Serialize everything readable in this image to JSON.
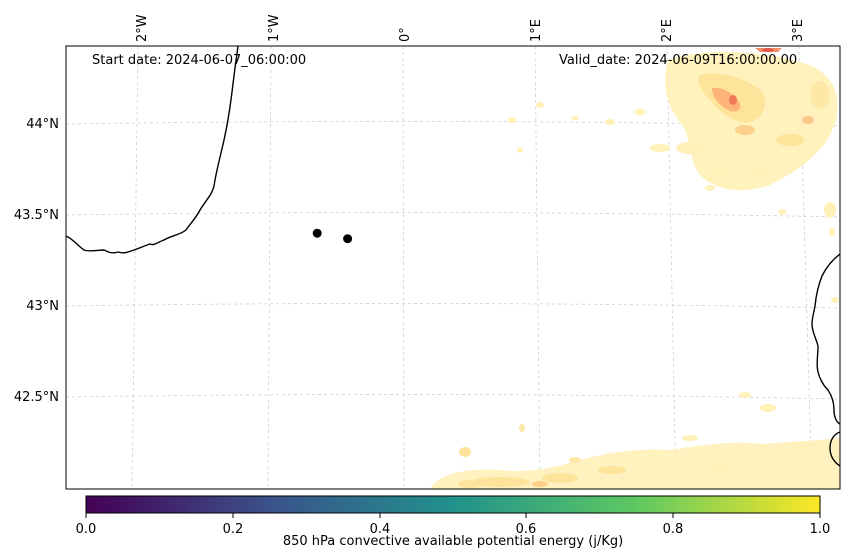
{
  "map": {
    "start_date": "Start date: 2024-06-07_06:00:00",
    "valid_date": "Valid_date: 2024-06-09T16:00:00.00",
    "lon_labels": [
      "2°W",
      "1°W",
      "0°",
      "1°E",
      "2°E",
      "3°E"
    ],
    "lat_labels": [
      "44°N",
      "43.5°N",
      "43°N",
      "42.5°N"
    ],
    "points": [
      {
        "lon": -0.65,
        "lat": 43.4
      },
      {
        "lon": -0.42,
        "lat": 43.37
      }
    ]
  },
  "colorbar": {
    "label": "850 hPa convective available potential energy (j/Kg)",
    "ticks": [
      "0.0",
      "0.2",
      "0.4",
      "0.6",
      "0.8",
      "1.0"
    ],
    "colors": [
      "#440154",
      "#3b528b",
      "#21918c",
      "#5ec962",
      "#fde725"
    ]
  }
}
